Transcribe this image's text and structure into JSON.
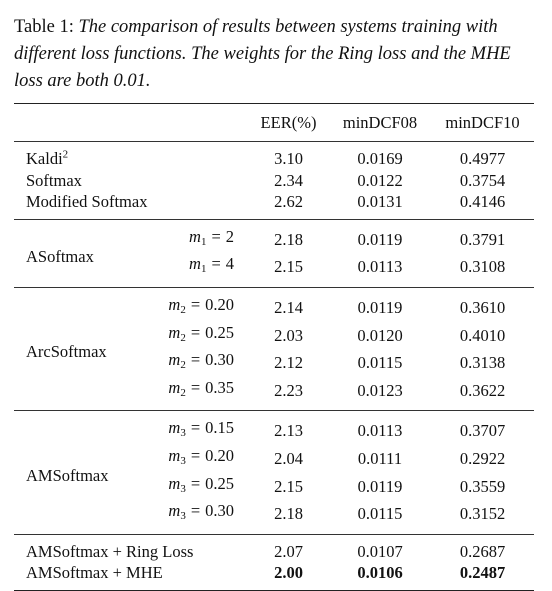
{
  "caption": {
    "label": "Table 1:",
    "text": "The comparison of results between systems training with different loss functions. The weights for the Ring loss and the MHE loss are both 0.01."
  },
  "table": {
    "headers": [
      "EER(%)",
      "minDCF08",
      "minDCF10"
    ],
    "baseline": [
      {
        "method": "Kaldi",
        "sup": "2",
        "eer": "3.10",
        "dcf08": "0.0169",
        "dcf10": "0.4977"
      },
      {
        "method": "Softmax",
        "eer": "2.34",
        "dcf08": "0.0122",
        "dcf10": "0.3754"
      },
      {
        "method": "Modified Softmax",
        "eer": "2.62",
        "dcf08": "0.0131",
        "dcf10": "0.4146"
      }
    ],
    "asoftmax": {
      "method": "ASoftmax",
      "rows": [
        {
          "var": "m",
          "sub": "1",
          "val": "2",
          "eer": "2.18",
          "dcf08": "0.0119",
          "dcf10": "0.3791"
        },
        {
          "var": "m",
          "sub": "1",
          "val": "4",
          "eer": "2.15",
          "dcf08": "0.0113",
          "dcf10": "0.3108"
        }
      ]
    },
    "arcsoftmax": {
      "method": "ArcSoftmax",
      "rows": [
        {
          "var": "m",
          "sub": "2",
          "val": "0.20",
          "eer": "2.14",
          "dcf08": "0.0119",
          "dcf10": "0.3610"
        },
        {
          "var": "m",
          "sub": "2",
          "val": "0.25",
          "eer": "2.03",
          "dcf08": "0.0120",
          "dcf10": "0.4010"
        },
        {
          "var": "m",
          "sub": "2",
          "val": "0.30",
          "eer": "2.12",
          "dcf08": "0.0115",
          "dcf10": "0.3138"
        },
        {
          "var": "m",
          "sub": "2",
          "val": "0.35",
          "eer": "2.23",
          "dcf08": "0.0123",
          "dcf10": "0.3622"
        }
      ]
    },
    "amsoftmax": {
      "method": "AMSoftmax",
      "rows": [
        {
          "var": "m",
          "sub": "3",
          "val": "0.15",
          "eer": "2.13",
          "dcf08": "0.0113",
          "dcf10": "0.3707"
        },
        {
          "var": "m",
          "sub": "3",
          "val": "0.20",
          "eer": "2.04",
          "dcf08": "0.0111",
          "dcf10": "0.2922"
        },
        {
          "var": "m",
          "sub": "3",
          "val": "0.25",
          "eer": "2.15",
          "dcf08": "0.0119",
          "dcf10": "0.3559"
        },
        {
          "var": "m",
          "sub": "3",
          "val": "0.30",
          "eer": "2.18",
          "dcf08": "0.0115",
          "dcf10": "0.3152"
        }
      ]
    },
    "combined": [
      {
        "method": "AMSoftmax + Ring Loss",
        "eer": "2.07",
        "dcf08": "0.0107",
        "dcf10": "0.2687"
      },
      {
        "method": "AMSoftmax + MHE",
        "eer": "2.00",
        "dcf08": "0.0106",
        "dcf10": "0.2487"
      }
    ]
  }
}
